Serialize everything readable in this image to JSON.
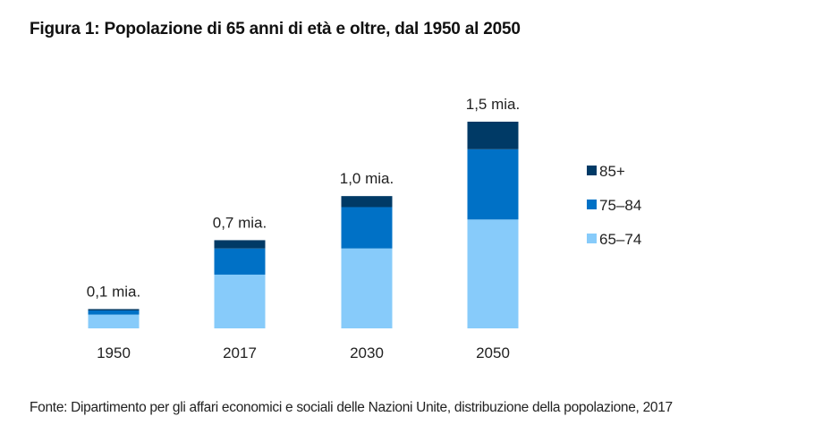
{
  "chart_data": {
    "type": "bar",
    "stacked": true,
    "title": "Figura 1: Popolazione di 65 anni di età e oltre, dal 1950 al 2050",
    "xlabel": "",
    "ylabel": "",
    "ylim": [
      0,
      1.5
    ],
    "grid": false,
    "legend_position": "right",
    "unit": "miliardi",
    "categories": [
      "1950",
      "2017",
      "2030",
      "2050"
    ],
    "series": [
      {
        "name": "65–74",
        "color": "#87CBFA",
        "values": [
          0.1,
          0.39,
          0.58,
          0.79
        ]
      },
      {
        "name": "75–84",
        "color": "#0071C6",
        "values": [
          0.03,
          0.19,
          0.3,
          0.51
        ]
      },
      {
        "name": "85+",
        "color": "#003A66",
        "values": [
          0.01,
          0.06,
          0.08,
          0.2
        ]
      }
    ],
    "total_labels": [
      "0,1 mia.",
      "0,7 mia.",
      "1,0 mia.",
      "1,5 mia."
    ],
    "legend": [
      "85+",
      "75–84",
      "65–74"
    ],
    "source": "Fonte: Dipartimento per gli affari economici e sociali delle Nazioni Unite, distribuzione della popolazione, 2017"
  }
}
